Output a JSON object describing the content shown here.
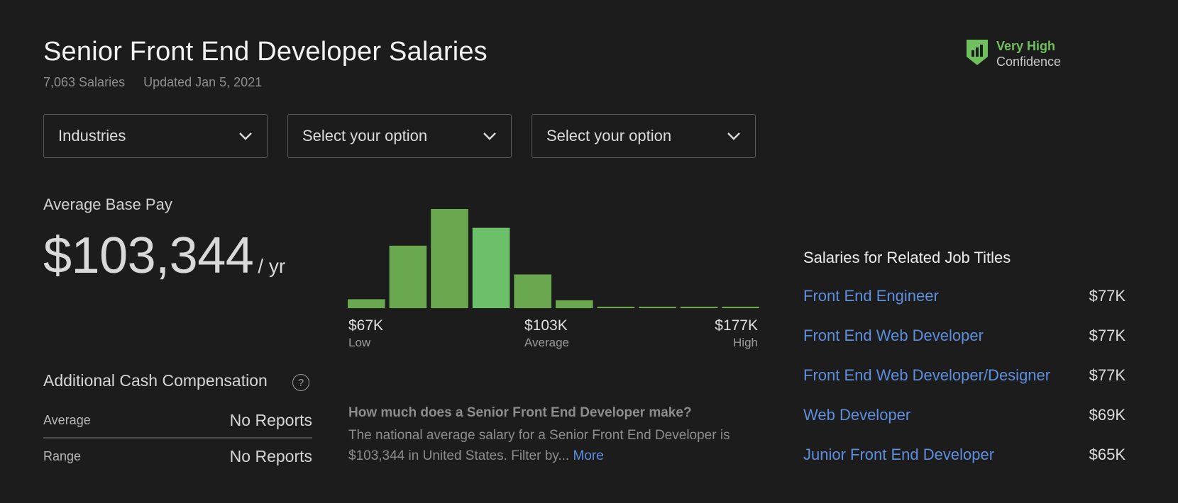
{
  "header": {
    "title": "Senior Front End Developer Salaries",
    "salaries_count": "7,063 Salaries",
    "updated": "Updated Jan 5, 2021",
    "confidence_level": "Very High",
    "confidence_label": "Confidence",
    "confidence_icon": "shield-bar-chart-icon",
    "confidence_color": "#6fbf5e"
  },
  "filters": [
    {
      "value": "Industries"
    },
    {
      "value": "Select your option"
    },
    {
      "value": "Select your option"
    }
  ],
  "base_pay": {
    "label": "Average Base Pay",
    "amount": "$103,344",
    "unit": "/ yr"
  },
  "histogram": {
    "low_value": "$67K",
    "low_label": "Low",
    "avg_value": "$103K",
    "avg_label": "Average",
    "high_value": "$177K",
    "high_label": "High"
  },
  "chart_data": {
    "type": "bar",
    "values": [
      0.09,
      0.63,
      1.0,
      0.81,
      0.34,
      0.08,
      0.015,
      0.015,
      0.015,
      0.015
    ],
    "highlight_index": 3,
    "colors": {
      "bar": "#6aa84f",
      "highlight": "#6cc06a"
    },
    "x_tick_labels": [
      "$67K",
      "$103K",
      "$177K"
    ],
    "x_tick_sublabels": [
      "Low",
      "Average",
      "High"
    ]
  },
  "additional_cash": {
    "title": "Additional Cash Compensation",
    "help": "?",
    "rows": [
      {
        "label": "Average",
        "value": "No Reports"
      },
      {
        "label": "Range",
        "value": "No Reports"
      }
    ]
  },
  "faq": {
    "question": "How much does a Senior Front End Developer make?",
    "answer": "The national average salary for a Senior Front End Developer is $103,344 in United States. Filter by...",
    "more": "More"
  },
  "related": {
    "title": "Salaries for Related Job Titles",
    "items": [
      {
        "title": "Front End Engineer",
        "salary": "$77K"
      },
      {
        "title": "Front End Web Developer",
        "salary": "$77K"
      },
      {
        "title": "Front End Web Developer/Designer",
        "salary": "$77K"
      },
      {
        "title": "Web Developer",
        "salary": "$69K"
      },
      {
        "title": "Junior Front End Developer",
        "salary": "$65K"
      }
    ]
  }
}
